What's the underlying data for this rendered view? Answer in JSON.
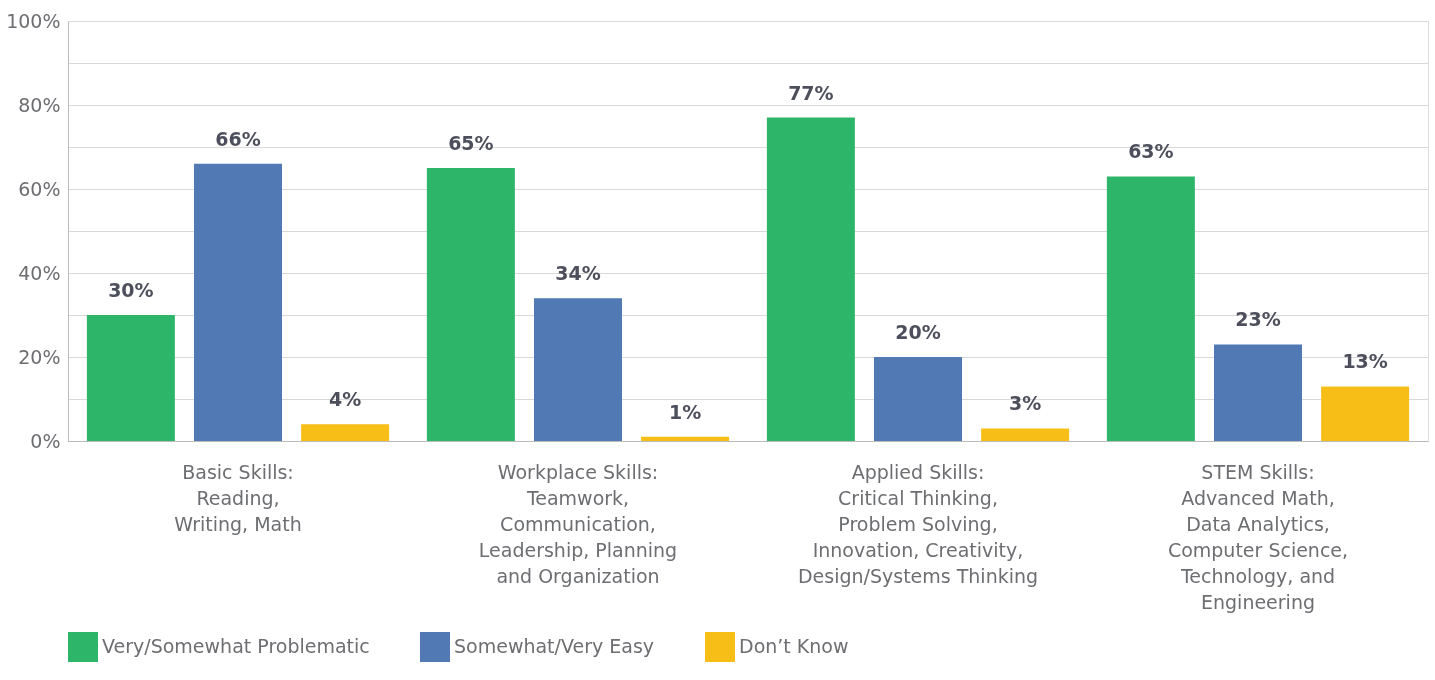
{
  "chart_data": {
    "type": "bar",
    "categories": [
      "Basic Skills:\nReading,\nWriting, Math",
      "Workplace Skills:\nTeamwork,\nCommunication,\nLeadership, Planning\nand Organization",
      "Applied Skills:\nCritical Thinking,\nProblem Solving,\nInnovation, Creativity,\nDesign/Systems Thinking",
      "STEM Skills:\nAdvanced Math,\nData Analytics,\nComputer Science,\nTechnology, and\nEngineering"
    ],
    "series": [
      {
        "name": "Very/Somewhat Problematic",
        "color": "#2db56a",
        "values": [
          30,
          65,
          77,
          63
        ]
      },
      {
        "name": "Somewhat/Very Easy",
        "color": "#517ab5",
        "values": [
          66,
          34,
          20,
          23
        ]
      },
      {
        "name": "Don’t Know",
        "color": "#f6be16",
        "values": [
          4,
          1,
          3,
          13
        ]
      }
    ],
    "value_labels": [
      [
        "30%",
        "65%",
        "77%",
        "63%"
      ],
      [
        "66%",
        "34%",
        "20%",
        "23%"
      ],
      [
        "4%",
        "1%",
        "3%",
        "13%"
      ]
    ],
    "ylim": [
      0,
      100
    ],
    "yticks": [
      {
        "value": 0,
        "label": "0%"
      },
      {
        "value": 10,
        "label": null
      },
      {
        "value": 20,
        "label": "20%"
      },
      {
        "value": 30,
        "label": null
      },
      {
        "value": 40,
        "label": "40%"
      },
      {
        "value": 50,
        "label": null
      },
      {
        "value": 60,
        "label": "60%"
      },
      {
        "value": 70,
        "label": null
      },
      {
        "value": 80,
        "label": "80%"
      },
      {
        "value": 90,
        "label": null
      },
      {
        "value": 100,
        "label": "100%"
      }
    ],
    "grid": "y",
    "legend": "bottom"
  }
}
